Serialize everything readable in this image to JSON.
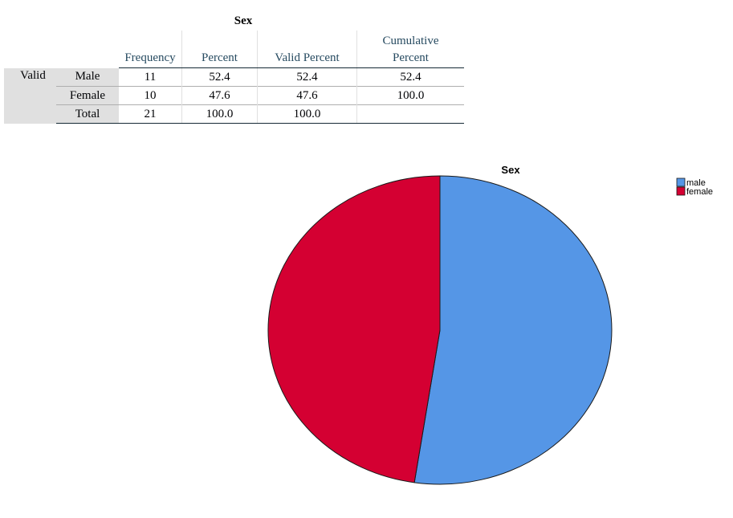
{
  "table": {
    "title": "Sex",
    "headers": {
      "frequency": "Frequency",
      "percent": "Percent",
      "valid_percent": "Valid Percent",
      "cumulative_line1": "Cumulative",
      "cumulative_line2": "Percent"
    },
    "group_label": "Valid",
    "rows": [
      {
        "label": "Male",
        "frequency": "11",
        "percent": "52.4",
        "valid_percent": "52.4",
        "cumulative_percent": "52.4"
      },
      {
        "label": "Female",
        "frequency": "10",
        "percent": "47.6",
        "valid_percent": "47.6",
        "cumulative_percent": "100.0"
      },
      {
        "label": "Total",
        "frequency": "21",
        "percent": "100.0",
        "valid_percent": "100.0",
        "cumulative_percent": ""
      }
    ]
  },
  "chart_data": {
    "type": "pie",
    "title": "Sex",
    "categories": [
      "male",
      "female"
    ],
    "values": [
      11,
      10
    ],
    "colors": [
      "#5596e6",
      "#d40032"
    ],
    "legend_position": "top-right",
    "start_angle": "12 o'clock",
    "direction": "clockwise"
  }
}
